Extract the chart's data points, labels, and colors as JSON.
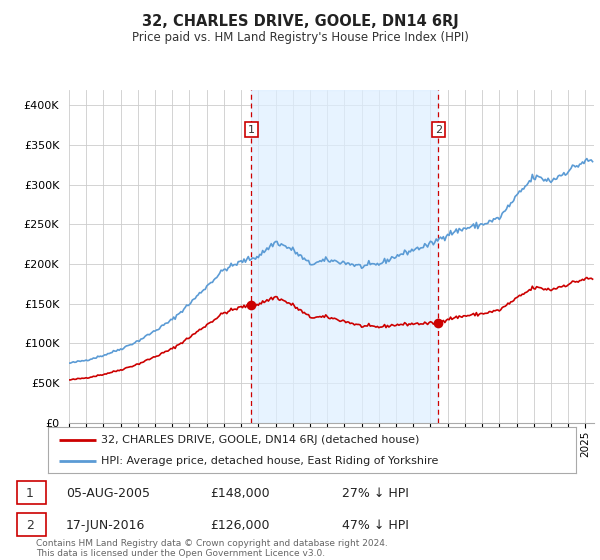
{
  "title": "32, CHARLES DRIVE, GOOLE, DN14 6RJ",
  "subtitle": "Price paid vs. HM Land Registry's House Price Index (HPI)",
  "legend_line1": "32, CHARLES DRIVE, GOOLE, DN14 6RJ (detached house)",
  "legend_line2": "HPI: Average price, detached house, East Riding of Yorkshire",
  "footnote": "Contains HM Land Registry data © Crown copyright and database right 2024.\nThis data is licensed under the Open Government Licence v3.0.",
  "marker1_date": "05-AUG-2005",
  "marker1_price": "£148,000",
  "marker1_hpi": "27% ↓ HPI",
  "marker2_date": "17-JUN-2016",
  "marker2_price": "£126,000",
  "marker2_hpi": "47% ↓ HPI",
  "hpi_color": "#5b9bd5",
  "hpi_fill_color": "#ddeeff",
  "price_color": "#cc0000",
  "grid_color": "#cccccc",
  "background_color": "#ffffff",
  "ylim": [
    0,
    420000
  ],
  "xlim_start": 1995.0,
  "xlim_end": 2025.5,
  "sale1_x": 2005.59,
  "sale1_y": 148000,
  "sale2_x": 2016.45,
  "sale2_y": 126000,
  "dashed_x1": 2005.59,
  "dashed_x2": 2016.45,
  "xticks": [
    1995,
    1996,
    1997,
    1998,
    1999,
    2000,
    2001,
    2002,
    2003,
    2004,
    2005,
    2006,
    2007,
    2008,
    2009,
    2010,
    2011,
    2012,
    2013,
    2014,
    2015,
    2016,
    2017,
    2018,
    2019,
    2020,
    2021,
    2022,
    2023,
    2024,
    2025
  ],
  "yticks": [
    0,
    50000,
    100000,
    150000,
    200000,
    250000,
    300000,
    350000,
    400000
  ],
  "ytick_labels": [
    "£0",
    "£50K",
    "£100K",
    "£150K",
    "£200K",
    "£250K",
    "£300K",
    "£350K",
    "£400K"
  ]
}
